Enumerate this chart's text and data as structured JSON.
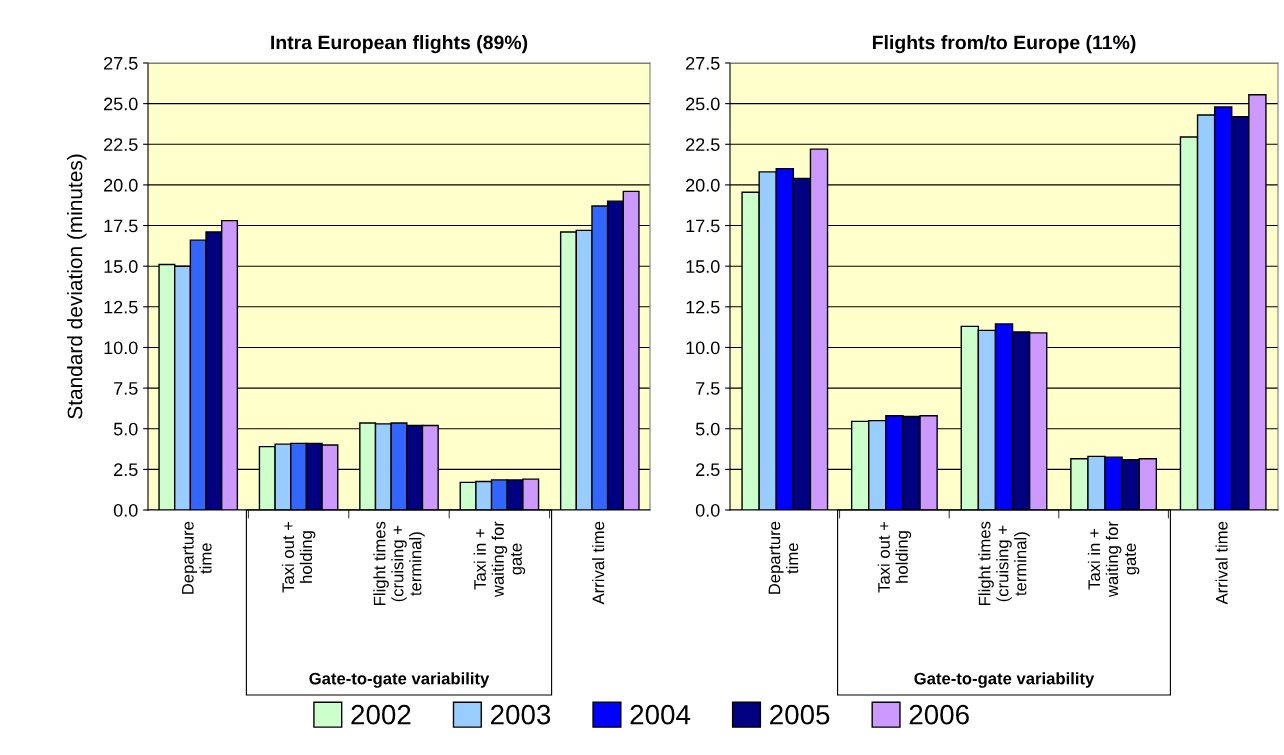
{
  "chart_data": [
    {
      "type": "bar",
      "title": "Intra European flights (89%)",
      "ylabel": "Standard deviation (minutes)",
      "categories": [
        "Departure\ntime",
        "Taxi out +\nholding",
        "Flight times\n(cruising +\nterminal)",
        "Taxi in +\nwaiting for\ngate",
        "Arrival time"
      ],
      "series": [
        {
          "color": "#ccffcc",
          "values": [
            15.1,
            3.9,
            5.35,
            1.7,
            17.1
          ]
        },
        {
          "color": "#99ccff",
          "values": [
            15.0,
            4.05,
            5.3,
            1.75,
            17.2
          ]
        },
        {
          "color": "#3366ff",
          "values": [
            16.6,
            4.1,
            5.35,
            1.85,
            18.7
          ]
        },
        {
          "color": "#000080",
          "values": [
            17.1,
            4.1,
            5.2,
            1.85,
            19.0
          ]
        },
        {
          "color": "#cc99ff",
          "values": [
            17.8,
            4.0,
            5.2,
            1.9,
            19.6
          ]
        }
      ],
      "ylim": [
        0,
        27.5
      ],
      "yticks": [
        {
          "value": 0,
          "label": "0.0"
        },
        {
          "value": 2.5,
          "label": "2.5"
        },
        {
          "value": 5,
          "label": "5.0"
        },
        {
          "value": 7.5,
          "label": "7.5"
        },
        {
          "value": 10,
          "label": "10.0"
        },
        {
          "value": 12.5,
          "label": "12.5"
        },
        {
          "value": 15,
          "label": "15.0"
        },
        {
          "value": 17.5,
          "label": "17.5"
        },
        {
          "value": 20,
          "label": "20.0"
        },
        {
          "value": 22.5,
          "label": "22.5"
        },
        {
          "value": 25,
          "label": "25.0"
        },
        {
          "value": 27.5,
          "label": "27.5"
        }
      ],
      "grid": "y",
      "annotations": [
        "Gate-to-gate variability"
      ]
    },
    {
      "type": "bar",
      "title": "Flights from/to Europe (11%)",
      "categories": [
        "Departure\ntime",
        "Taxi out +\nholding",
        "Flight times\n(cruising +\nterminal)",
        "Taxi in +\nwaiting for\ngate",
        "Arrival time"
      ],
      "series": [
        {
          "name": "2002",
          "color": "#ccffcc",
          "values": [
            19.55,
            5.45,
            11.3,
            3.15,
            22.95
          ]
        },
        {
          "name": "2003",
          "color": "#99ccff",
          "values": [
            20.8,
            5.5,
            11.05,
            3.3,
            24.3
          ]
        },
        {
          "name": "2004",
          "color": "#0000ff",
          "values": [
            21.0,
            5.8,
            11.45,
            3.25,
            24.8
          ]
        },
        {
          "name": "2005",
          "color": "#000080",
          "values": [
            20.4,
            5.75,
            10.95,
            3.1,
            24.2
          ]
        },
        {
          "name": "2006",
          "color": "#cc99ff",
          "values": [
            22.2,
            5.8,
            10.9,
            3.15,
            25.55
          ]
        }
      ],
      "ylim": [
        0,
        27.5
      ],
      "yticks": [
        {
          "value": 0,
          "label": "0.0"
        },
        {
          "value": 2.5,
          "label": "2.5"
        },
        {
          "value": 5,
          "label": "5.0"
        },
        {
          "value": 7.5,
          "label": "7.5"
        },
        {
          "value": 10,
          "label": "10.0"
        },
        {
          "value": 12.5,
          "label": "12.5"
        },
        {
          "value": 15,
          "label": "15.0"
        },
        {
          "value": 17.5,
          "label": "17.5"
        },
        {
          "value": 20,
          "label": "20.0"
        },
        {
          "value": 22.5,
          "label": "22.5"
        },
        {
          "value": 25,
          "label": "25.0"
        },
        {
          "value": 27.5,
          "label": "27.5"
        }
      ],
      "grid": "y",
      "legend": "bottom",
      "annotations": [
        "Gate-to-gate variability"
      ]
    }
  ]
}
